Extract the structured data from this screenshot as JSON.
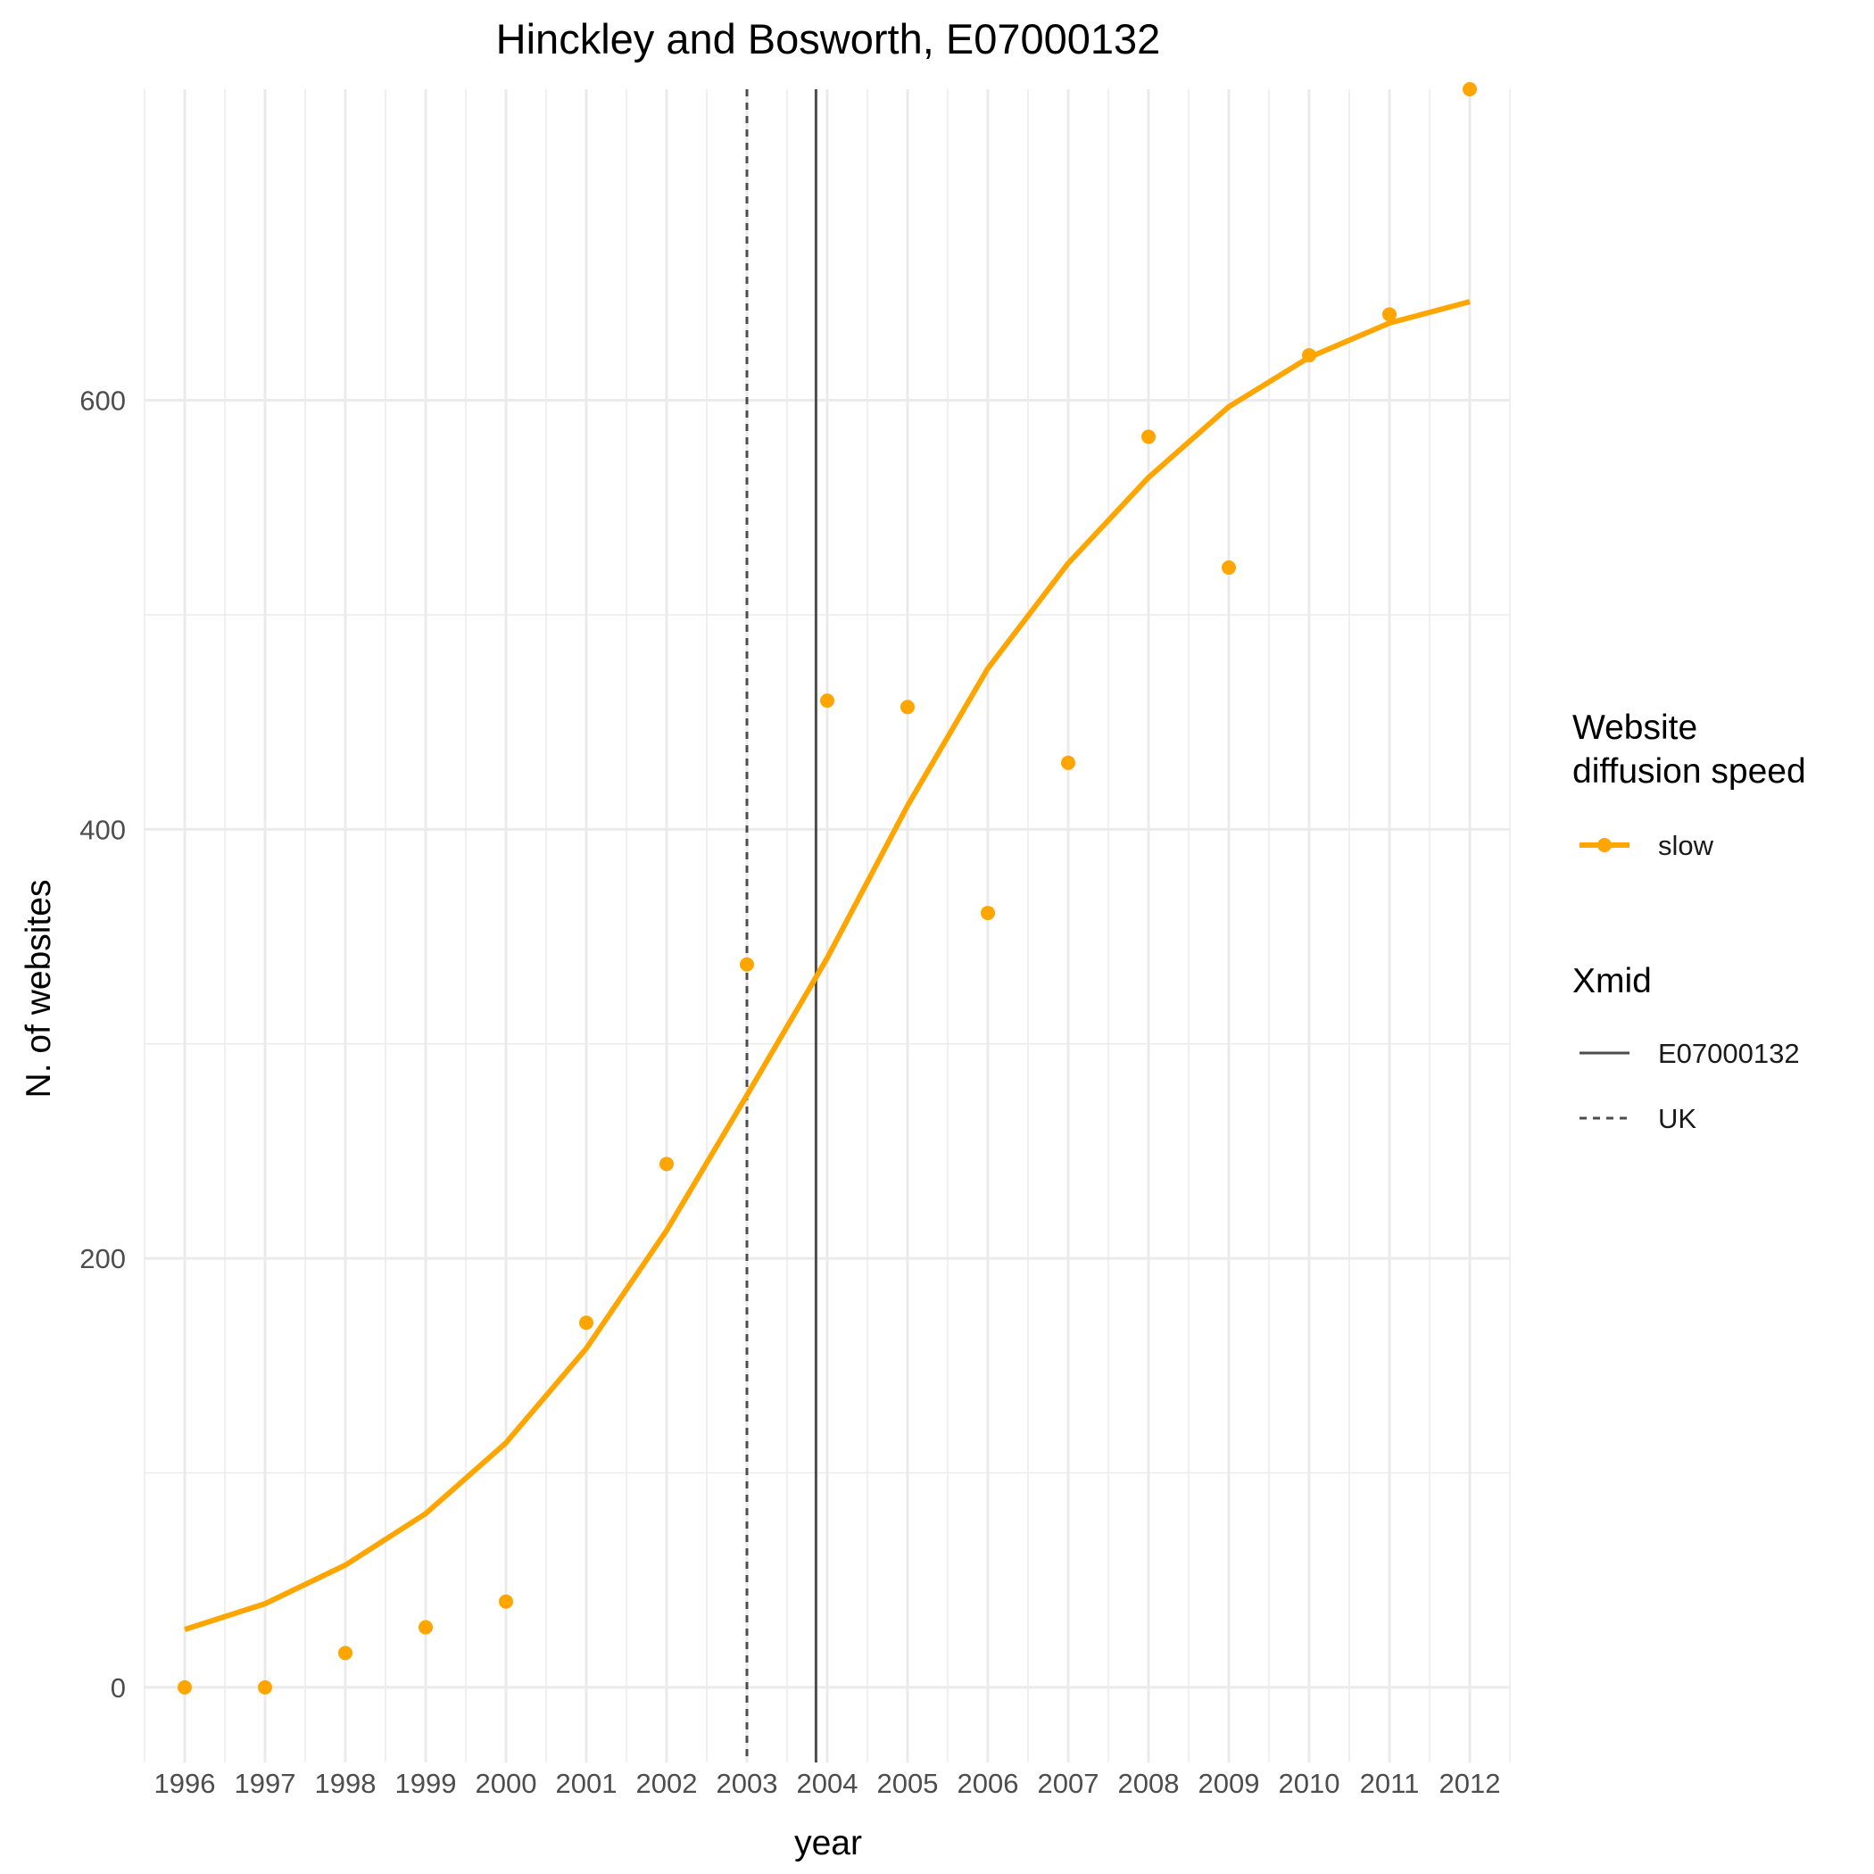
{
  "chart_data": {
    "type": "line",
    "title": "Hinckley and Bosworth, E07000132",
    "xlabel": "year",
    "ylabel": "N. of websites",
    "x": [
      1996,
      1997,
      1998,
      1999,
      2000,
      2001,
      2002,
      2003,
      2004,
      2005,
      2006,
      2007,
      2008,
      2009,
      2010,
      2011,
      2012
    ],
    "x_tick_labels": [
      "1996",
      "1997",
      "1998",
      "1999",
      "2000",
      "2001",
      "2002",
      "2003",
      "2004",
      "2005",
      "2006",
      "2007",
      "2008",
      "2009",
      "2010",
      "2011",
      "2012"
    ],
    "y_ticks": [
      0,
      200,
      400,
      600
    ],
    "y_tick_labels": [
      "0",
      "200",
      "400",
      "600"
    ],
    "xlim": [
      1995.5,
      2012.5
    ],
    "ylim": [
      -35,
      745
    ],
    "grid": true,
    "series": [
      {
        "name": "slow",
        "kind": "points",
        "color": "#FFA500",
        "values": [
          0,
          0,
          16,
          28,
          40,
          170,
          244,
          337,
          460,
          457,
          361,
          431,
          583,
          522,
          621,
          640,
          745
        ]
      },
      {
        "name": "slow",
        "kind": "line",
        "color": "#FFA500",
        "values": [
          27,
          39,
          57,
          81,
          114,
          158,
          213,
          276,
          340,
          411,
          475,
          524,
          564,
          597,
          620,
          636,
          646
        ]
      }
    ],
    "vlines": [
      {
        "name": "E07000132",
        "x": 2003.86,
        "style": "solid",
        "color": "#4d4d4d"
      },
      {
        "name": "UK",
        "x": 2003.0,
        "style": "dashed",
        "color": "#4d4d4d"
      }
    ],
    "legend": {
      "position": "right",
      "groups": [
        {
          "title_lines": [
            "Website",
            "diffusion speed"
          ],
          "entries": [
            {
              "label": "slow",
              "type": "line-point",
              "color": "#FFA500"
            }
          ]
        },
        {
          "title_lines": [
            "Xmid"
          ],
          "entries": [
            {
              "label": "E07000132",
              "type": "solid"
            },
            {
              "label": "UK",
              "type": "dashed"
            }
          ]
        }
      ]
    }
  }
}
